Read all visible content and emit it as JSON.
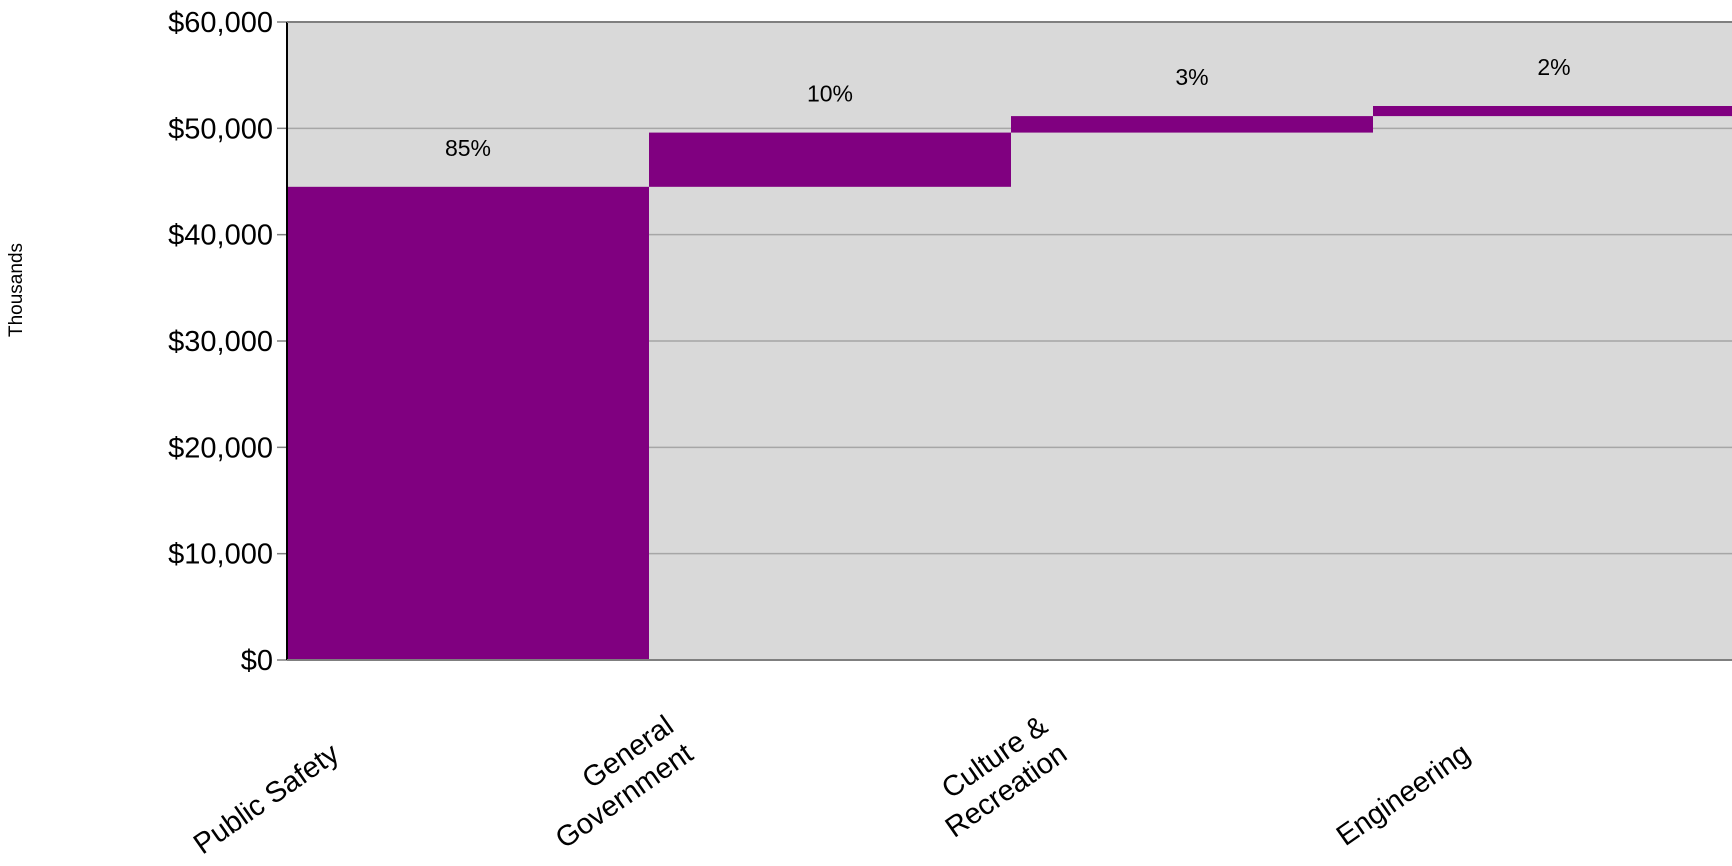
{
  "chart_data": {
    "type": "bar",
    "subtype": "waterfall",
    "categories": [
      "Public Safety",
      "General Government",
      "Culture & Recreation",
      "Engineering"
    ],
    "category_label_lines": [
      [
        "Public Safety"
      ],
      [
        "General",
        "Government"
      ],
      [
        "Culture &",
        "Recreation"
      ],
      [
        "Engineering"
      ]
    ],
    "values": [
      44500,
      5100,
      1550,
      950
    ],
    "cumulative_end": [
      44500,
      49600,
      51150,
      52100
    ],
    "data_labels": [
      "85%",
      "10%",
      "3%",
      "2%"
    ],
    "ylabel": "Thousands",
    "ylim": [
      0,
      60000
    ],
    "y_ticks": [
      0,
      10000,
      20000,
      30000,
      40000,
      50000,
      60000
    ],
    "y_tick_labels": [
      "$0",
      "$10,000",
      "$20,000",
      "$30,000",
      "$40,000",
      "$50,000",
      "$60,000"
    ],
    "grid": true,
    "legend": "none",
    "colors": {
      "bar": "#800080",
      "plot_background": "#d9d9d9",
      "gridline": "#a6a6a6",
      "axis": "#7f7f7f"
    }
  }
}
